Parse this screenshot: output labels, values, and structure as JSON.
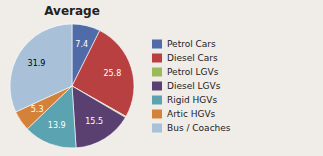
{
  "chart_data": {
    "type": "pie",
    "title": "Average",
    "categories": [
      "Petrol Cars",
      "Diesel Cars",
      "Petrol LGVs",
      "Diesel LGVs",
      "Rigid HGVs",
      "Artic HGVs",
      "Bus / Coaches"
    ],
    "values": [
      7.4,
      25.8,
      0.3,
      15.5,
      13.9,
      5.3,
      31.9
    ],
    "value_labels": [
      "7.4",
      "25.8",
      null,
      "15.5",
      "13.9",
      "5.3",
      "31.9"
    ],
    "colors": [
      "#4F6CA8",
      "#B94040",
      "#9BBB59",
      "#5A4070",
      "#5BA3B0",
      "#D4823A",
      "#A8C0D8"
    ],
    "data_labels": true,
    "legend": "right"
  }
}
